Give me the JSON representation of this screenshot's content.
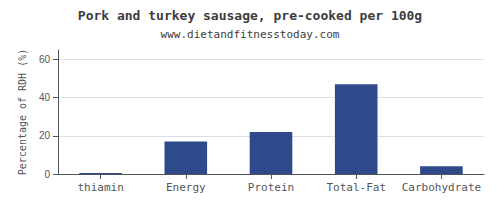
{
  "chart_data": {
    "type": "bar",
    "title": "Pork and turkey sausage, pre-cooked per 100g",
    "subtitle": "www.dietandfitnesstoday.com",
    "categories": [
      "thiamin",
      "Energy",
      "Protein",
      "Total-Fat",
      "Carbohydrate"
    ],
    "values": [
      0.5,
      17,
      22,
      47,
      4
    ],
    "color": "#2e4a8a",
    "ylabel": "Percentage of RDH (%)",
    "ylim": [
      0,
      65
    ],
    "yticks": [
      0,
      20,
      40,
      60
    ],
    "grid": true
  }
}
